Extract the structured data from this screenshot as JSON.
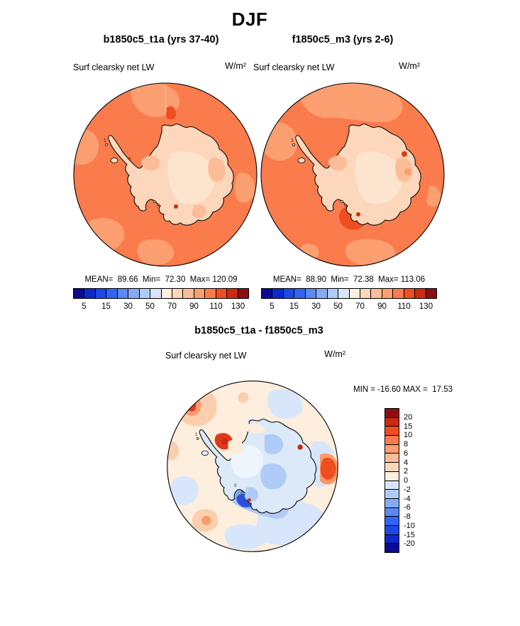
{
  "title": "DJF",
  "panels": [
    {
      "title": "b1850c5_t1a (yrs 37-40)",
      "field": "Surf clearsky net LW",
      "units": "W/m²",
      "stats": "MEAN=  89.66  Min=  72.30  Max= 120.09"
    },
    {
      "title": "f1850c5_m3 (yrs 2-6)",
      "field": "Surf clearsky net LW",
      "units": "W/m²",
      "stats": "MEAN=  88.90  Min=  72.38  Max= 113.06"
    }
  ],
  "diff": {
    "title": "b1850c5_t1a - f1850c5_m3",
    "field": "Surf clearsky net LW",
    "units": "W/m²",
    "minmax": "MIN = -16.60 MAX =  17.53"
  },
  "colorbar": {
    "colors": [
      "#0B0B93",
      "#0A2AD0",
      "#1C48EA",
      "#2F64F5",
      "#5C88F3",
      "#86ABF5",
      "#AFCBF8",
      "#D8E6FB",
      "#FDEEDE",
      "#FCD7BB",
      "#FBBD98",
      "#FB9E70",
      "#FA7B4C",
      "#F04E1E",
      "#CE2A10",
      "#8F0D10"
    ],
    "ticks": [
      "5",
      "15",
      "30",
      "50",
      "70",
      "90",
      "110",
      "130"
    ]
  },
  "diff_colorbar": {
    "colors": [
      "#8F0D10",
      "#CE2A10",
      "#F04E1E",
      "#FA7B4C",
      "#FB9E70",
      "#FBBD98",
      "#FCD7BB",
      "#FDEEDE",
      "#D8E6FB",
      "#AFCBF8",
      "#86ABF5",
      "#5C88F3",
      "#2F64F5",
      "#1C48EA",
      "#0A2AD0",
      "#0B0B93"
    ],
    "labels": [
      "20",
      "15",
      "10",
      "8",
      "6",
      "4",
      "2",
      "0",
      "-2",
      "-4",
      "-6",
      "-8",
      "-10",
      "-15",
      "-20"
    ]
  },
  "glyphs": {
    "island": "1",
    "zero": "0"
  },
  "chart_data": [
    {
      "type": "heatmap",
      "subtype": "south-polar-stereographic-filled-contour-map",
      "season": "DJF",
      "title": "b1850c5_t1a (yrs 37-40)",
      "variable": "Surf clearsky net LW",
      "units": "W/m²",
      "region": "Antarctica and Southern Ocean",
      "stats": {
        "mean": 89.66,
        "min": 72.3,
        "max": 120.09
      },
      "contour_levels": [
        5,
        10,
        15,
        20,
        30,
        40,
        50,
        60,
        70,
        80,
        90,
        100,
        110,
        120,
        130
      ],
      "colorbar_ticks": [
        5,
        15,
        30,
        50,
        70,
        90,
        110,
        130
      ],
      "legend_position": "bottom"
    },
    {
      "type": "heatmap",
      "subtype": "south-polar-stereographic-filled-contour-map",
      "season": "DJF",
      "title": "f1850c5_m3 (yrs 2-6)",
      "variable": "Surf clearsky net LW",
      "units": "W/m²",
      "region": "Antarctica and Southern Ocean",
      "stats": {
        "mean": 88.9,
        "min": 72.38,
        "max": 113.06
      },
      "contour_levels": [
        5,
        10,
        15,
        20,
        30,
        40,
        50,
        60,
        70,
        80,
        90,
        100,
        110,
        120,
        130
      ],
      "colorbar_ticks": [
        5,
        15,
        30,
        50,
        70,
        90,
        110,
        130
      ],
      "legend_position": "bottom"
    },
    {
      "type": "heatmap",
      "subtype": "south-polar-stereographic-filled-contour-difference-map",
      "season": "DJF",
      "title": "b1850c5_t1a - f1850c5_m3",
      "variable": "Surf clearsky net LW",
      "units": "W/m²",
      "region": "Antarctica and Southern Ocean",
      "stats": {
        "min": -16.6,
        "max": 17.53
      },
      "contour_levels": [
        -20,
        -15,
        -10,
        -8,
        -6,
        -4,
        -2,
        0,
        2,
        4,
        6,
        8,
        10,
        15,
        20
      ],
      "legend_position": "right"
    }
  ]
}
